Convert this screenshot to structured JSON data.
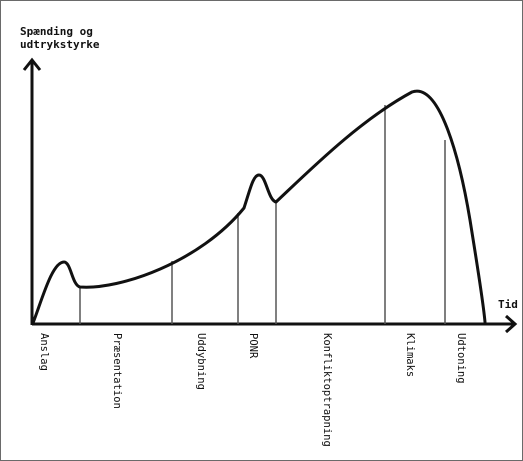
{
  "diagram": {
    "y_axis_label_line1": "Spænding og",
    "y_axis_label_line2": "udtrykstyrke",
    "x_axis_label": "Tid",
    "phases": [
      "Anslag",
      "Præsentation",
      "Uddybning",
      "PONR",
      "Konfliktoptrapning",
      "Klimaks",
      "Udtoning"
    ]
  },
  "colors": {
    "curve": "#111111",
    "divider": "#555555",
    "frame": "#6a6a6a"
  }
}
